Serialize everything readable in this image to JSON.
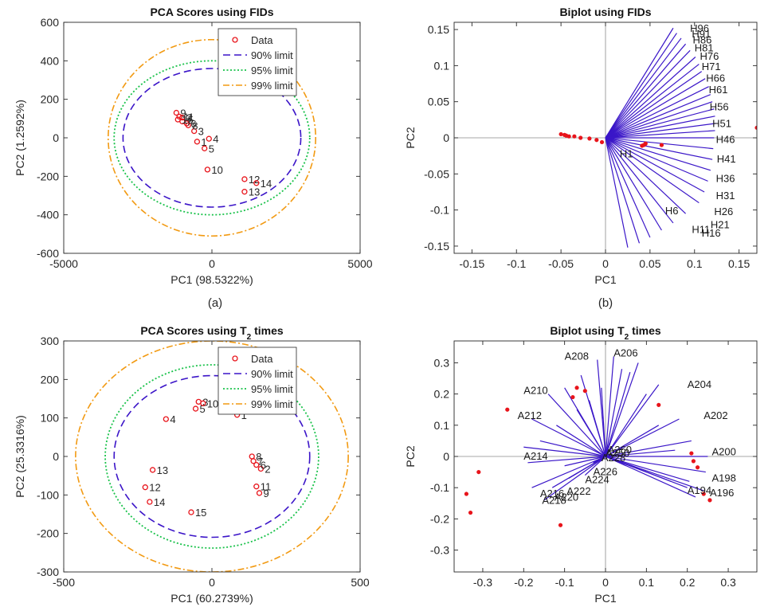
{
  "colors": {
    "data": "#e8141b",
    "lim90": "#3b14c8",
    "lim95": "#19c24a",
    "lim99": "#f29a12",
    "arrow": "#3a16c8",
    "axis": "#262626",
    "grid": "#bcbcbc"
  },
  "subcaptions": [
    "(a)",
    "(b)"
  ],
  "chart_data": [
    {
      "type": "scatter",
      "title": "PCA Scores using FIDs",
      "xlabel": "PC1 (98.5322%)",
      "ylabel": "PC2 (1.2592%)",
      "xlim": [
        -5000,
        5000
      ],
      "ylim": [
        -600,
        600
      ],
      "xticks": [
        -5000,
        0,
        5000
      ],
      "yticks": [
        -600,
        -400,
        -200,
        0,
        200,
        400,
        600
      ],
      "grid": false,
      "legend_position": "top-right",
      "legend": [
        "Data",
        "90% limit",
        "95% limit",
        "99% limit"
      ],
      "points": [
        {
          "label": "1",
          "x": -500,
          "y": -20
        },
        {
          "label": "2",
          "x": -1000,
          "y": 105
        },
        {
          "label": "3",
          "x": -600,
          "y": 35
        },
        {
          "label": "4",
          "x": -100,
          "y": -5
        },
        {
          "label": "5",
          "x": -250,
          "y": -55
        },
        {
          "label": "6",
          "x": -850,
          "y": 75
        },
        {
          "label": "7",
          "x": -1000,
          "y": 85
        },
        {
          "label": "8",
          "x": -800,
          "y": 65
        },
        {
          "label": "9",
          "x": -1200,
          "y": 130
        },
        {
          "label": "10",
          "x": -150,
          "y": -165
        },
        {
          "label": "11",
          "x": -1100,
          "y": 110
        },
        {
          "label": "12",
          "x": 1100,
          "y": -215
        },
        {
          "label": "13",
          "x": 1100,
          "y": -280
        },
        {
          "label": "14",
          "x": 1500,
          "y": -235
        },
        {
          "label": "15",
          "x": -1150,
          "y": 95
        }
      ],
      "ellipses": [
        {
          "name": "90% limit",
          "rx": 3000,
          "ry": 360
        },
        {
          "name": "95% limit",
          "rx": 3300,
          "ry": 400
        },
        {
          "name": "99% limit",
          "rx": 3500,
          "ry": 510
        }
      ]
    },
    {
      "type": "biplot",
      "title": "Biplot using FIDs",
      "xlabel": "PC1",
      "ylabel": "PC2",
      "xlim": [
        -0.17,
        0.17
      ],
      "ylim": [
        -0.16,
        0.16
      ],
      "xticks": [
        -0.15,
        -0.1,
        -0.05,
        0,
        0.05,
        0.1,
        0.15
      ],
      "yticks": [
        -0.15,
        -0.1,
        -0.05,
        0,
        0.05,
        0.1,
        0.15
      ],
      "loading_x": [
        0.076,
        0.08,
        0.085,
        0.09,
        0.095,
        0.101,
        0.105,
        0.108,
        0.112,
        0.116,
        0.118,
        0.12,
        0.122,
        0.123,
        0.124,
        0.123,
        0.122,
        0.121,
        0.12,
        0.118,
        0.115,
        0.111,
        0.105,
        0.09,
        0.076,
        0.063,
        0.05,
        0.038,
        0.025
      ],
      "loading_y": [
        0.152,
        0.145,
        0.138,
        0.13,
        0.121,
        0.112,
        0.102,
        0.092,
        0.082,
        0.071,
        0.06,
        0.05,
        0.04,
        0.03,
        0.02,
        0.01,
        0.0,
        -0.015,
        -0.03,
        -0.045,
        -0.06,
        -0.075,
        -0.09,
        -0.105,
        -0.118,
        -0.128,
        -0.138,
        -0.146,
        -0.152
      ],
      "vector_labels": [
        {
          "text": "H96",
          "x": 0.095,
          "y": 0.147
        },
        {
          "text": "H91",
          "x": 0.097,
          "y": 0.139
        },
        {
          "text": "H86",
          "x": 0.098,
          "y": 0.131
        },
        {
          "text": "H81",
          "x": 0.1,
          "y": 0.12
        },
        {
          "text": "H76",
          "x": 0.106,
          "y": 0.108
        },
        {
          "text": "H71",
          "x": 0.108,
          "y": 0.094
        },
        {
          "text": "H66",
          "x": 0.113,
          "y": 0.078
        },
        {
          "text": "H61",
          "x": 0.116,
          "y": 0.062
        },
        {
          "text": "H56",
          "x": 0.117,
          "y": 0.038
        },
        {
          "text": "H51",
          "x": 0.12,
          "y": 0.015
        },
        {
          "text": "H46",
          "x": 0.124,
          "y": -0.007
        },
        {
          "text": "H41",
          "x": 0.125,
          "y": -0.034
        },
        {
          "text": "H36",
          "x": 0.124,
          "y": -0.061
        },
        {
          "text": "H31",
          "x": 0.124,
          "y": -0.085
        },
        {
          "text": "H26",
          "x": 0.122,
          "y": -0.107
        },
        {
          "text": "H21",
          "x": 0.118,
          "y": -0.125
        },
        {
          "text": "H16",
          "x": 0.108,
          "y": -0.137
        },
        {
          "text": "H11",
          "x": 0.097,
          "y": -0.132
        },
        {
          "text": "H6",
          "x": 0.067,
          "y": -0.106
        },
        {
          "text": "H1",
          "x": 0.016,
          "y": -0.027
        }
      ],
      "scores_x": [
        -0.05,
        -0.046,
        -0.044,
        -0.041,
        -0.035,
        -0.028,
        -0.018,
        -0.01,
        -0.004,
        0.041,
        0.043,
        0.045,
        0.063,
        0.17
      ],
      "scores_y": [
        0.005,
        0.004,
        0.003,
        0.002,
        0.002,
        0.0,
        -0.001,
        -0.003,
        -0.006,
        -0.011,
        -0.01,
        -0.008,
        -0.01,
        0.014
      ]
    },
    {
      "type": "scatter",
      "title": "PCA Scores using T",
      "title_subscript": "2",
      "title_suffix": " times",
      "xlabel": "PC1 (60.2739%)",
      "ylabel": "PC2 (25.3316%)",
      "xlim": [
        -500,
        500
      ],
      "ylim": [
        -300,
        300
      ],
      "xticks": [
        -500,
        0,
        500
      ],
      "yticks": [
        -300,
        -200,
        -100,
        0,
        100,
        200,
        300
      ],
      "grid": false,
      "legend_position": "top-right",
      "legend": [
        "Data",
        "90% limit",
        "95% limit",
        "99% limit"
      ],
      "points": [
        {
          "label": "1",
          "x": 85,
          "y": 108
        },
        {
          "label": "2",
          "x": 165,
          "y": -32
        },
        {
          "label": "3",
          "x": -45,
          "y": 142
        },
        {
          "label": "4",
          "x": -155,
          "y": 97
        },
        {
          "label": "5",
          "x": -55,
          "y": 124
        },
        {
          "label": "6",
          "x": 150,
          "y": -22
        },
        {
          "label": "7",
          "x": 140,
          "y": -12
        },
        {
          "label": "8",
          "x": 135,
          "y": 0
        },
        {
          "label": "9",
          "x": 160,
          "y": -95
        },
        {
          "label": "10",
          "x": -30,
          "y": 138
        },
        {
          "label": "11",
          "x": 150,
          "y": -78
        },
        {
          "label": "12",
          "x": -225,
          "y": -80
        },
        {
          "label": "13",
          "x": -200,
          "y": -35
        },
        {
          "label": "14",
          "x": -210,
          "y": -118
        },
        {
          "label": "15",
          "x": -70,
          "y": -145
        }
      ],
      "ellipses": [
        {
          "name": "90% limit",
          "rx": 330,
          "ry": 210
        },
        {
          "name": "95% limit",
          "rx": 360,
          "ry": 238
        },
        {
          "name": "99% limit",
          "rx": 460,
          "ry": 300
        }
      ]
    },
    {
      "type": "biplot",
      "title": "Biplot using T",
      "title_subscript": "2",
      "title_suffix": " times",
      "xlabel": "PC1",
      "ylabel": "PC2",
      "xlim": [
        -0.37,
        0.37
      ],
      "ylim": [
        -0.37,
        0.37
      ],
      "xticks": [
        -0.3,
        -0.2,
        -0.1,
        0,
        0.1,
        0.2,
        0.3
      ],
      "yticks": [
        -0.3,
        -0.2,
        -0.1,
        0,
        0.1,
        0.2,
        0.3
      ],
      "loading_x": [
        0.24,
        0.22,
        0.245,
        0.205,
        0.25,
        0.17,
        0.21,
        0.13,
        0.18,
        0.1,
        0.13,
        0.06,
        0.08,
        0.02,
        0.04,
        -0.02,
        -0.01,
        -0.06,
        -0.04,
        -0.1,
        -0.07,
        -0.14,
        -0.12,
        -0.18,
        -0.16,
        -0.2,
        -0.19,
        -0.18,
        -0.1,
        -0.15,
        -0.05,
        -0.13,
        -0.03,
        -0.09,
        0.01,
        0.05,
        0.1,
        0.16,
        0.2
      ],
      "loading_y": [
        -0.11,
        -0.13,
        -0.05,
        -0.08,
        0.0,
        0.02,
        0.05,
        0.1,
        0.12,
        0.2,
        0.23,
        0.27,
        0.3,
        0.32,
        0.28,
        0.31,
        0.22,
        0.26,
        0.18,
        0.22,
        0.15,
        0.2,
        0.1,
        0.12,
        0.05,
        0.03,
        -0.02,
        -0.1,
        -0.03,
        -0.14,
        -0.06,
        -0.1,
        -0.02,
        -0.07,
        0.0,
        -0.03,
        -0.05,
        -0.08,
        -0.1
      ],
      "vector_labels": [
        {
          "text": "A196",
          "x": 0.255,
          "y": -0.128
        },
        {
          "text": "A194",
          "x": 0.2,
          "y": -0.12
        },
        {
          "text": "A198",
          "x": 0.26,
          "y": -0.08
        },
        {
          "text": "A200",
          "x": 0.26,
          "y": 0.004
        },
        {
          "text": "A202",
          "x": 0.24,
          "y": 0.12
        },
        {
          "text": "A204",
          "x": 0.2,
          "y": 0.22
        },
        {
          "text": "A206",
          "x": 0.02,
          "y": 0.32
        },
        {
          "text": "A208",
          "x": -0.1,
          "y": 0.31
        },
        {
          "text": "A210",
          "x": -0.2,
          "y": 0.2
        },
        {
          "text": "A212",
          "x": -0.215,
          "y": 0.12
        },
        {
          "text": "A214",
          "x": -0.2,
          "y": -0.01
        },
        {
          "text": "A216",
          "x": -0.16,
          "y": -0.13
        },
        {
          "text": "A218",
          "x": -0.155,
          "y": -0.152
        },
        {
          "text": "A220",
          "x": -0.125,
          "y": -0.142
        },
        {
          "text": "A222",
          "x": -0.095,
          "y": -0.122
        },
        {
          "text": "A224",
          "x": -0.05,
          "y": -0.085
        },
        {
          "text": "A226",
          "x": -0.03,
          "y": -0.06
        },
        {
          "text": "A228",
          "x": -0.01,
          "y": -0.015
        },
        {
          "text": "A250",
          "x": 0.0,
          "y": 0.0
        },
        {
          "text": "A260",
          "x": 0.005,
          "y": 0.01
        }
      ],
      "scores_x": [
        -0.34,
        -0.33,
        -0.31,
        -0.24,
        -0.11,
        -0.08,
        -0.07,
        -0.05,
        0.13,
        0.21,
        0.215,
        0.225,
        0.24,
        0.255
      ],
      "scores_y": [
        -0.12,
        -0.18,
        -0.05,
        0.15,
        -0.22,
        0.19,
        0.22,
        0.21,
        0.165,
        0.01,
        -0.015,
        -0.035,
        -0.12,
        -0.14
      ]
    }
  ]
}
